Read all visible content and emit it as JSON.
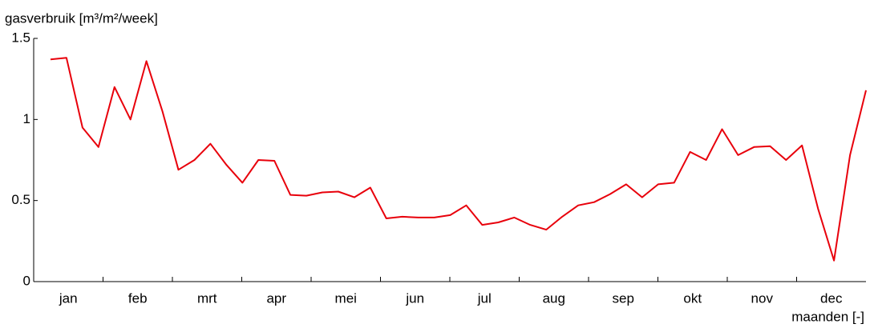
{
  "chart_data": {
    "type": "line",
    "y_label": "gasverbruik [m³/m²/week]",
    "x_label": "maanden [-]",
    "months": [
      "jan",
      "feb",
      "mrt",
      "apr",
      "mei",
      "jun",
      "jul",
      "aug",
      "sep",
      "okt",
      "nov",
      "dec"
    ],
    "color": "#e8000b",
    "values": [
      1.37,
      1.38,
      0.95,
      0.83,
      1.2,
      1.0,
      1.36,
      1.05,
      0.69,
      0.75,
      0.85,
      0.72,
      0.61,
      0.75,
      0.745,
      0.535,
      0.53,
      0.55,
      0.555,
      0.52,
      0.58,
      0.39,
      0.4,
      0.395,
      0.395,
      0.41,
      0.47,
      0.35,
      0.365,
      0.395,
      0.35,
      0.32,
      0.4,
      0.47,
      0.49,
      0.54,
      0.6,
      0.52,
      0.6,
      0.61,
      0.8,
      0.75,
      0.94,
      0.78,
      0.83,
      0.835,
      0.75,
      0.84,
      0.45,
      0.13,
      0.78,
      1.18
    ],
    "ylim": [
      0,
      1.5
    ],
    "yticks": [
      0,
      0.5,
      1,
      1.5
    ]
  }
}
